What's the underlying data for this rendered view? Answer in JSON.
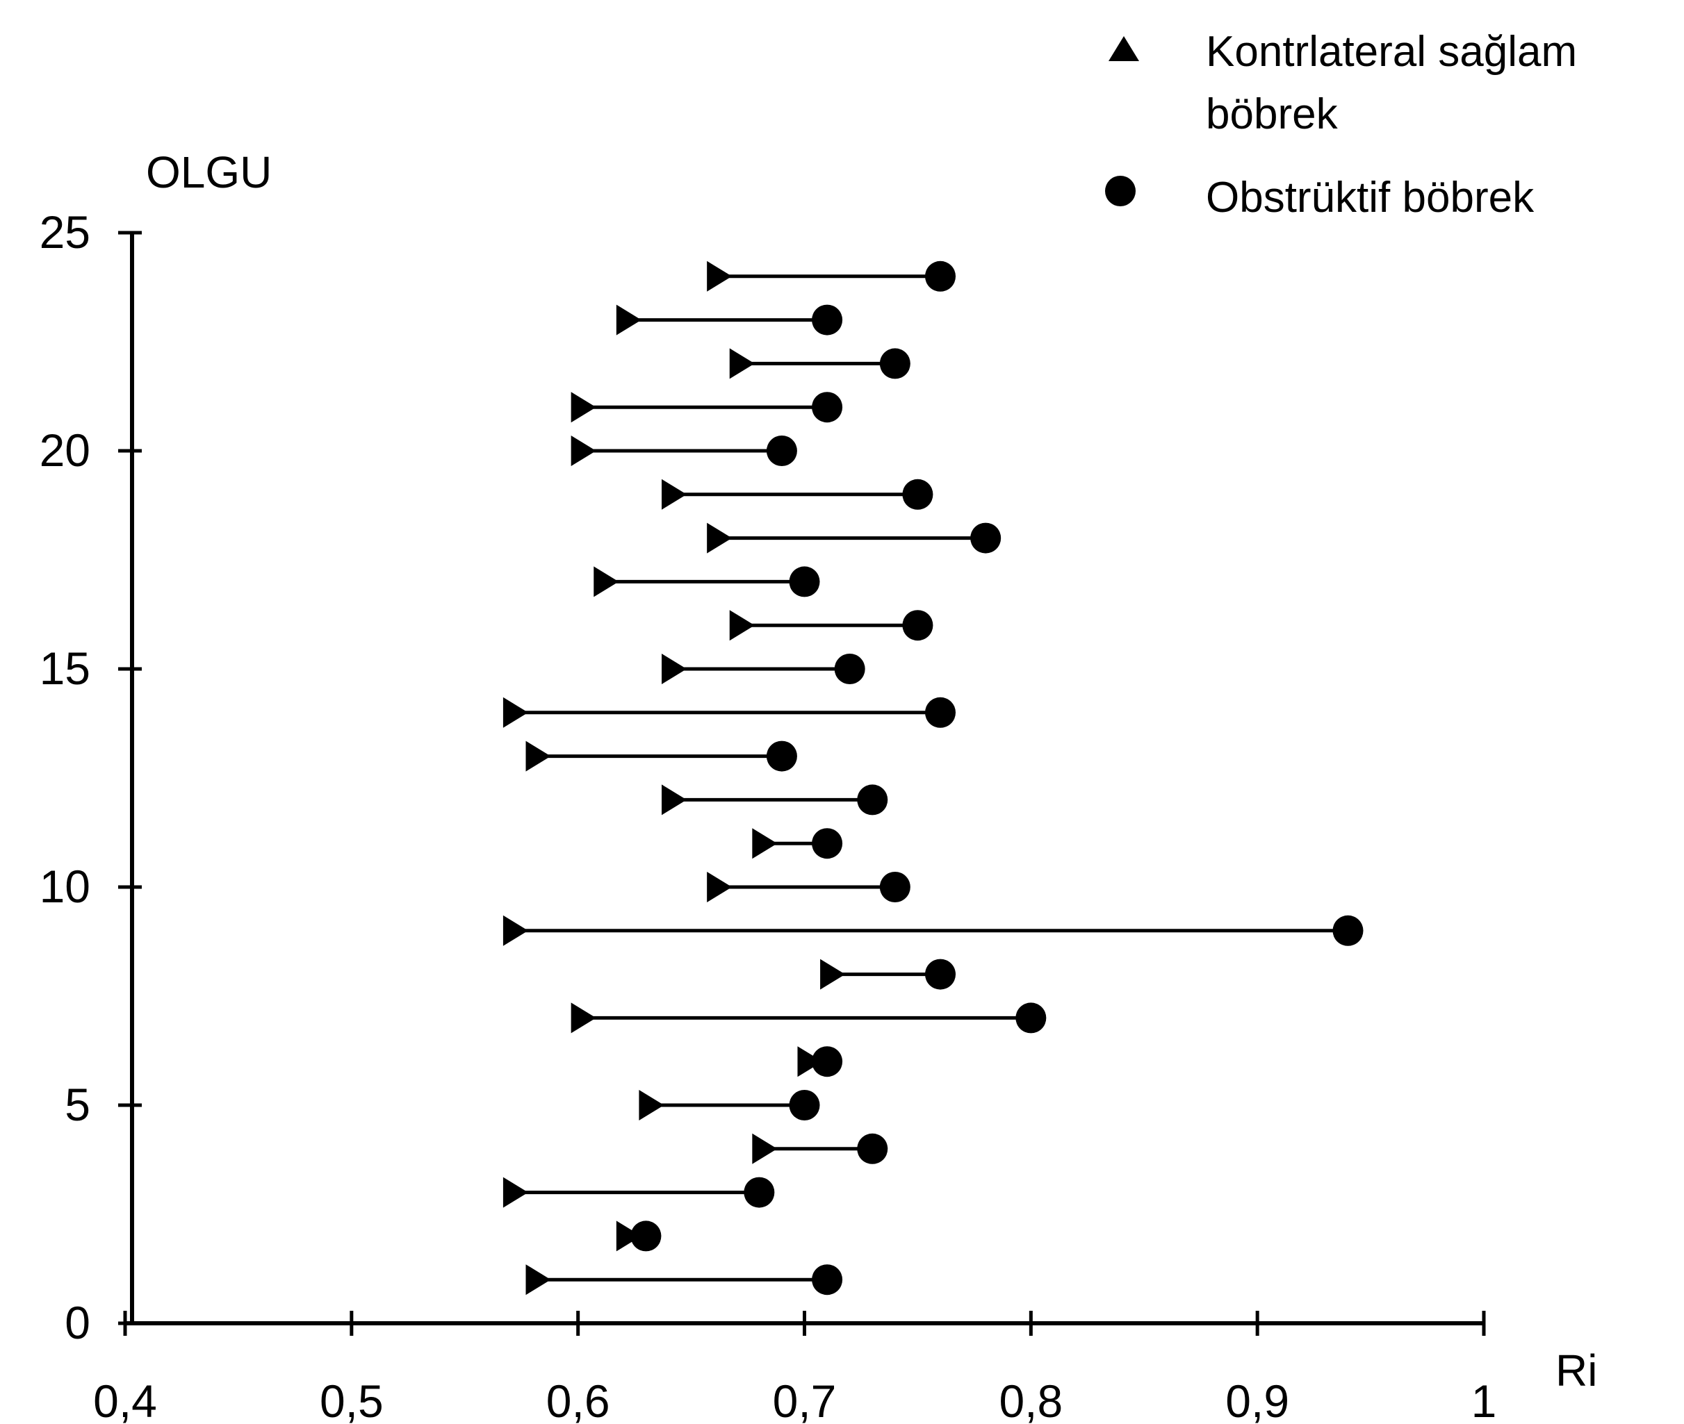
{
  "chart_data": {
    "type": "dumbbell",
    "title": "",
    "ylabel": "OLGU",
    "xlabel": "Ri",
    "xlim": [
      0.4,
      1.0
    ],
    "ylim": [
      0,
      25
    ],
    "xticks": [
      0.4,
      0.5,
      0.6,
      0.7,
      0.8,
      0.9,
      1.0
    ],
    "xtick_labels": [
      "0,4",
      "0,5",
      "0,6",
      "0,7",
      "0,8",
      "0,9",
      "1"
    ],
    "yticks": [
      0,
      5,
      10,
      15,
      20,
      25
    ],
    "ytick_labels": [
      "0",
      "5",
      "10",
      "15",
      "20",
      "25"
    ],
    "legend": {
      "position": "top-right",
      "entries": [
        {
          "marker": "triangle",
          "lines": [
            "Kontrlateral sağlam",
            "böbrek"
          ]
        },
        {
          "marker": "circle",
          "lines": [
            "Obstrüktif böbrek"
          ]
        }
      ]
    },
    "series": [
      {
        "name": "Kontrlateral sağlam böbrek",
        "marker": "triangle",
        "values": [
          0.58,
          0.62,
          0.57,
          0.68,
          0.63,
          0.7,
          0.6,
          0.71,
          0.57,
          0.66,
          0.68,
          0.64,
          0.58,
          0.57,
          0.64,
          0.67,
          0.61,
          0.66,
          0.64,
          0.6,
          0.6,
          0.67,
          0.62,
          0.66
        ]
      },
      {
        "name": "Obstrüktif böbrek",
        "marker": "circle",
        "values": [
          0.71,
          0.63,
          0.68,
          0.73,
          0.7,
          0.71,
          0.8,
          0.76,
          0.94,
          0.74,
          0.71,
          0.73,
          0.69,
          0.76,
          0.72,
          0.75,
          0.7,
          0.78,
          0.75,
          0.69,
          0.71,
          0.74,
          0.71,
          0.76
        ]
      }
    ],
    "cases": [
      1,
      2,
      3,
      4,
      5,
      6,
      7,
      8,
      9,
      10,
      11,
      12,
      13,
      14,
      15,
      16,
      17,
      18,
      19,
      20,
      21,
      22,
      23,
      24
    ]
  }
}
